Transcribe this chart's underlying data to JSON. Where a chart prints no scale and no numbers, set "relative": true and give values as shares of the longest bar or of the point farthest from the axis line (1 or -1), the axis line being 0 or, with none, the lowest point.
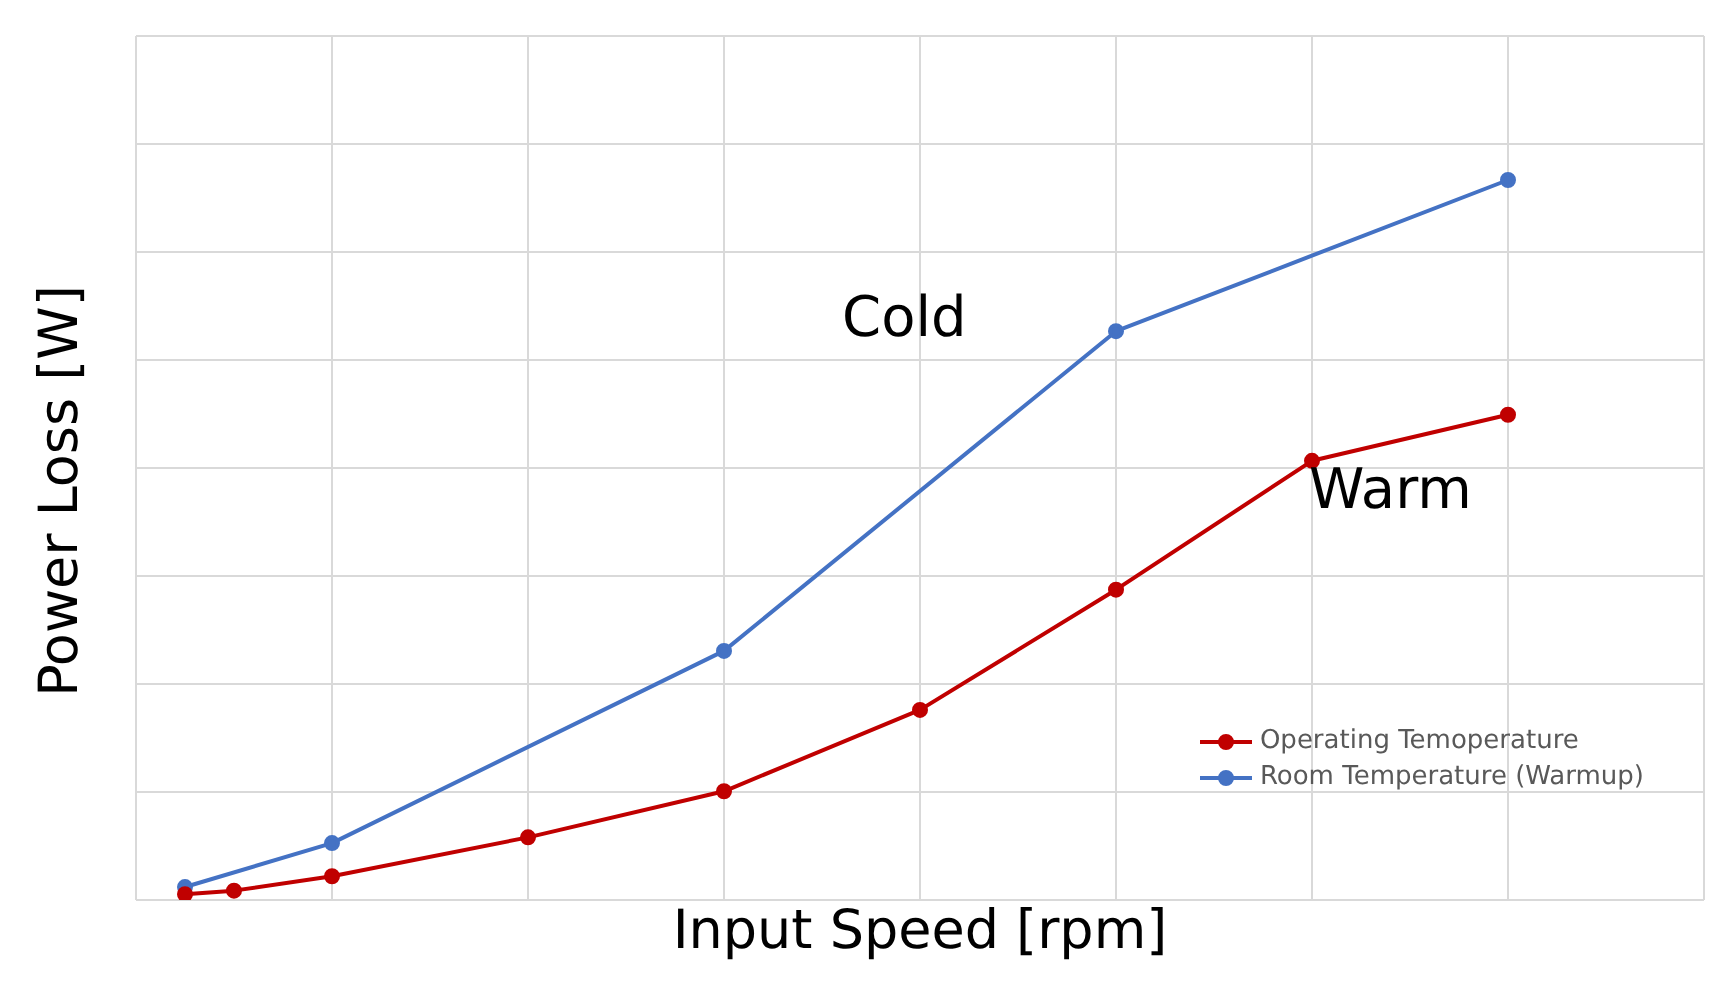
{
  "chart_data": {
    "type": "line",
    "relative": true,
    "xlabel": "Input Speed [rpm]",
    "ylabel": "Power Loss [W]",
    "categories": [
      null,
      null,
      null,
      null,
      null,
      null,
      null,
      null,
      null,
      null,
      null,
      null,
      null,
      null,
      null,
      null,
      null,
      null,
      null,
      null,
      null,
      null,
      null,
      null,
      null,
      null,
      null,
      null
    ],
    "series": [
      {
        "name": "Operating Temoperature",
        "color": "#c00000",
        "values": [
          0.008,
          0.013,
          null,
          0.033,
          null,
          null,
          null,
          0.087,
          null,
          null,
          null,
          0.151,
          null,
          null,
          null,
          0.264,
          null,
          null,
          null,
          0.431,
          null,
          null,
          null,
          0.61,
          null,
          null,
          null,
          0.674
        ]
      },
      {
        "name": "Room Temperature (Warmup)",
        "color": "#4472c4",
        "values": [
          0.018,
          null,
          null,
          0.079,
          null,
          null,
          null,
          null,
          null,
          null,
          null,
          0.346,
          null,
          null,
          null,
          null,
          null,
          null,
          null,
          0.79,
          null,
          null,
          null,
          null,
          null,
          null,
          null,
          1
        ]
      }
    ],
    "annotations": [
      "Cold",
      "Warm"
    ],
    "grid": true,
    "legend": "bottom right",
    "marker": "circle",
    "line_style": "solid"
  }
}
